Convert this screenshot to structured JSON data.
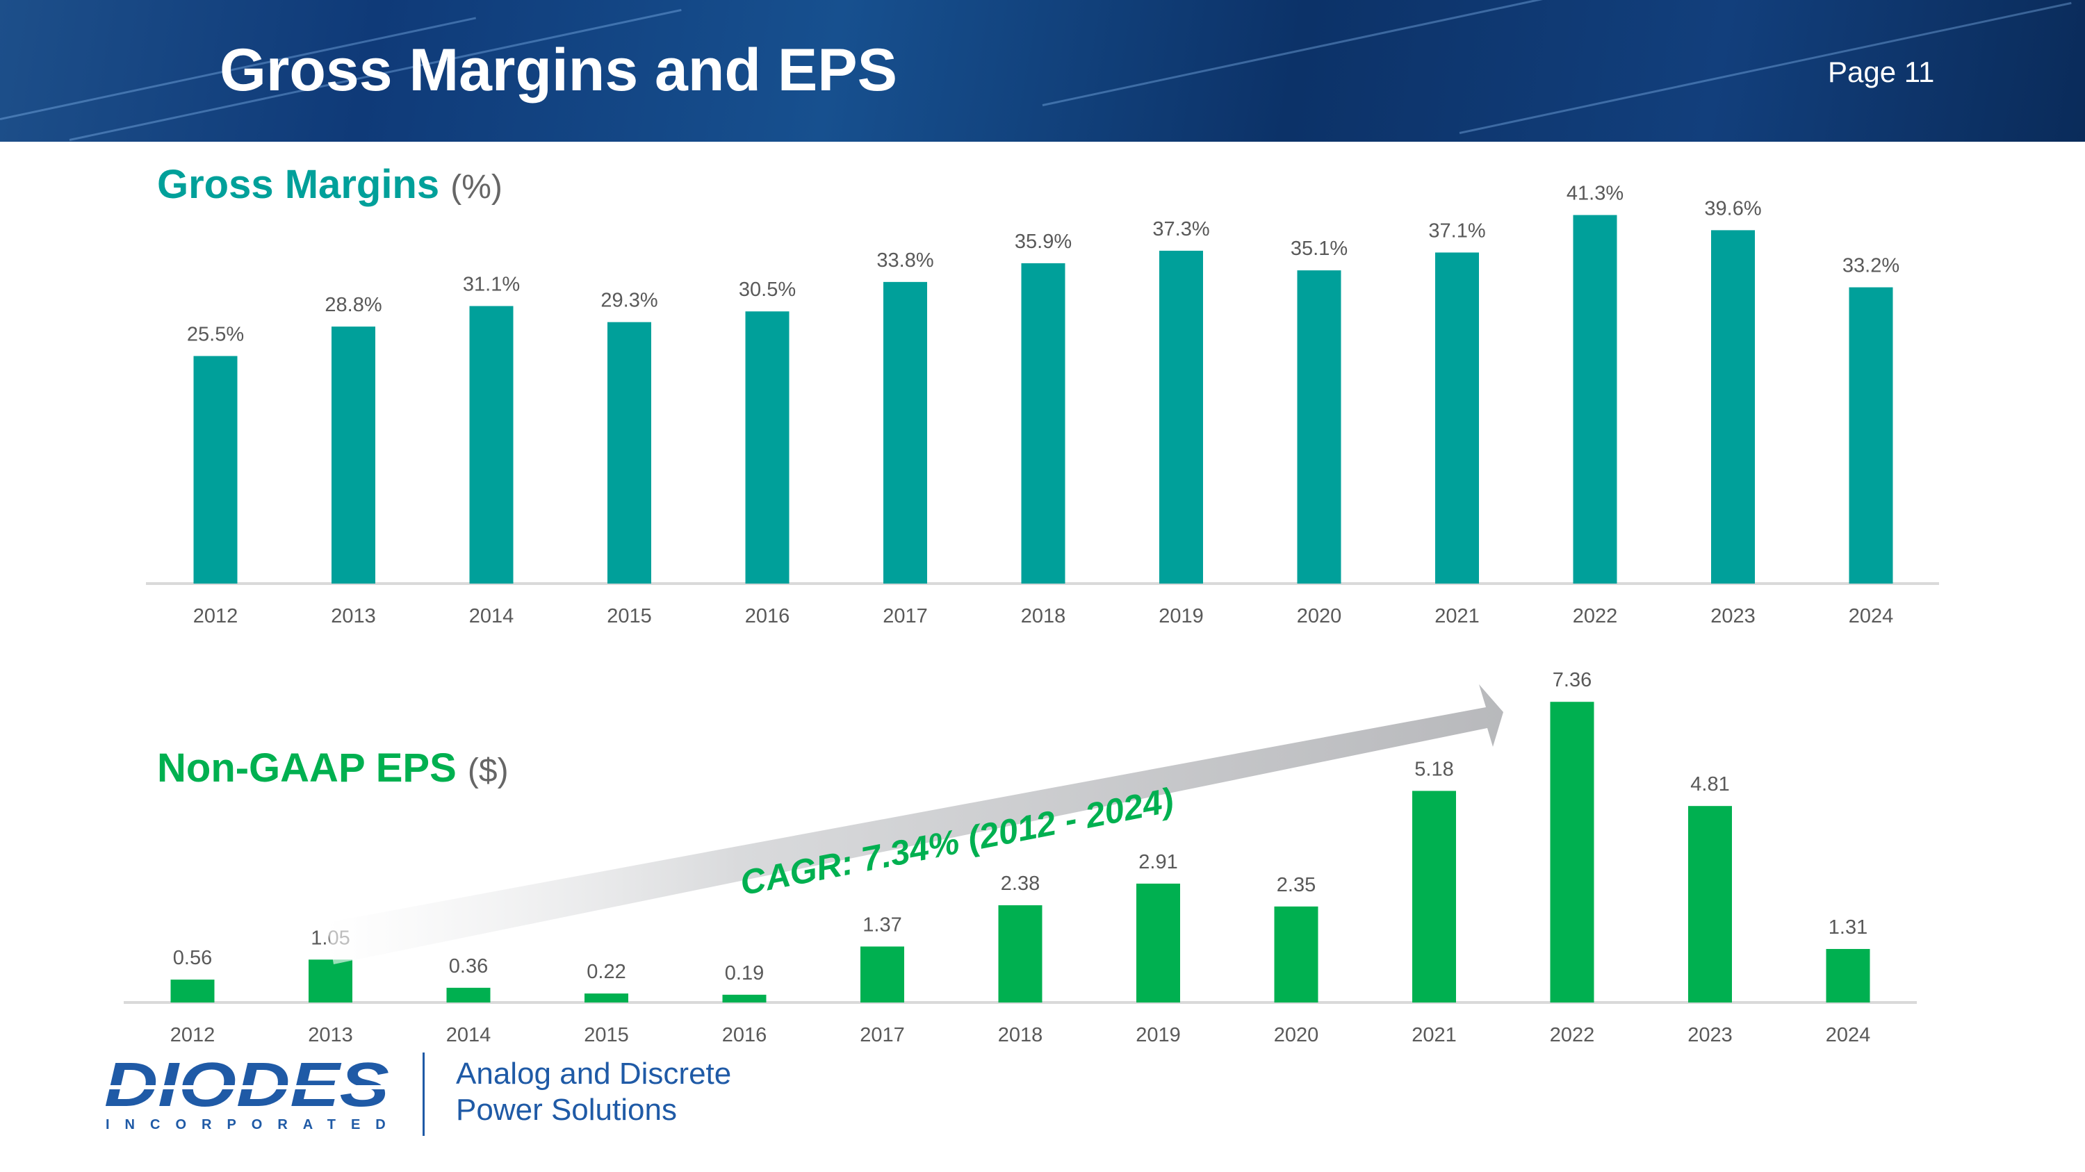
{
  "header": {
    "title": "Gross Margins and EPS",
    "page": "Page 11"
  },
  "gross_margins_heading": {
    "label": "Gross Margins",
    "unit": "(%)"
  },
  "eps_heading": {
    "label": "Non-GAAP EPS",
    "unit": "($)"
  },
  "cagr_label": "CAGR: 7.34% (2012 - 2024)",
  "colors": {
    "gm_bar": "#00a09a",
    "eps_bar": "#00b050",
    "banner": "#0f3a78",
    "brand": "#1f5aa6"
  },
  "logo": {
    "name": "DIODES",
    "sub": "INCORPORATED"
  },
  "tagline": {
    "line1": "Analog and Discrete",
    "line2": "Power Solutions"
  },
  "chart_data": [
    {
      "type": "bar",
      "title": "Gross Margins",
      "unit": "%",
      "categories": [
        "2012",
        "2013",
        "2014",
        "2015",
        "2016",
        "2017",
        "2018",
        "2019",
        "2020",
        "2021",
        "2022",
        "2023",
        "2024"
      ],
      "values": [
        25.5,
        28.8,
        31.1,
        29.3,
        30.5,
        33.8,
        35.9,
        37.3,
        35.1,
        37.1,
        41.3,
        39.6,
        33.2
      ],
      "labels": [
        "25.5%",
        "28.8%",
        "31.1%",
        "29.3%",
        "30.5%",
        "33.8%",
        "35.9%",
        "37.3%",
        "35.1%",
        "37.1%",
        "41.3%",
        "39.6%",
        "33.2%"
      ],
      "ylim": [
        0,
        45
      ]
    },
    {
      "type": "bar",
      "title": "Non-GAAP EPS",
      "unit": "$",
      "categories": [
        "2012",
        "2013",
        "2014",
        "2015",
        "2016",
        "2017",
        "2018",
        "2019",
        "2020",
        "2021",
        "2022",
        "2023",
        "2024"
      ],
      "values": [
        0.56,
        1.05,
        0.36,
        0.22,
        0.19,
        1.37,
        2.38,
        2.91,
        2.35,
        5.18,
        7.36,
        4.81,
        1.31
      ],
      "labels": [
        "0.56",
        "1.05",
        "0.36",
        "0.22",
        "0.19",
        "1.37",
        "2.38",
        "2.91",
        "2.35",
        "5.18",
        "7.36",
        "4.81",
        "1.31"
      ],
      "ylim": [
        0,
        7.5
      ],
      "annotation": "CAGR: 7.34% (2012 - 2024)"
    }
  ]
}
